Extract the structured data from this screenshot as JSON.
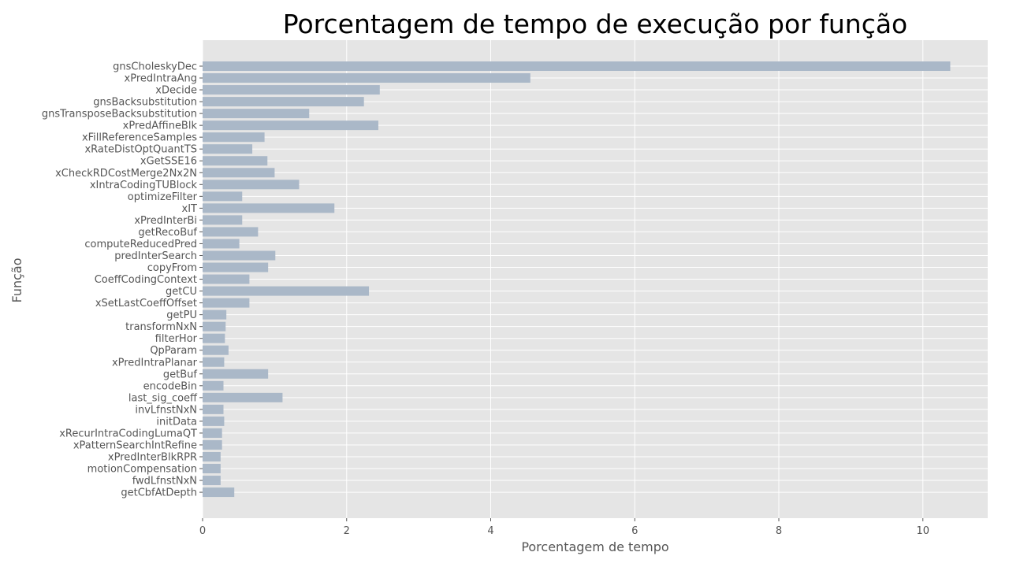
{
  "chart_data": {
    "type": "bar",
    "orientation": "horizontal",
    "title": "Porcentagem de tempo de execução por função",
    "xlabel": "Porcentagem de tempo",
    "ylabel": "Função",
    "xlim": [
      0,
      10.9
    ],
    "xticks": [
      "0",
      "2",
      "4",
      "6",
      "8",
      "10"
    ],
    "grid": true,
    "bar_color": "#aab8c8",
    "background_color": "#e5e5e5",
    "categories": [
      "gnsCholeskyDec",
      "xPredIntraAng",
      "xDecide",
      "gnsBacksubstitution",
      "gnsTransposeBacksubstitution",
      "xPredAffineBlk",
      "xFillReferenceSamples",
      "xRateDistOptQuantTS",
      "xGetSSE16",
      "xCheckRDCostMerge2Nx2N",
      "xIntraCodingTUBlock",
      "optimizeFilter",
      "xIT",
      "xPredInterBi",
      "getRecoBuf",
      "computeReducedPred",
      "predInterSearch",
      "copyFrom",
      "CoeffCodingContext",
      "getCU",
      "xSetLastCoeffOffset",
      "getPU",
      "transformNxN",
      "filterHor",
      "QpParam",
      "xPredIntraPlanar",
      "getBuf",
      "encodeBin",
      "last_sig_coeff",
      "invLfnstNxN",
      "initData",
      "xRecurIntraCodingLumaQT",
      "xPatternSearchIntRefine",
      "xPredInterBlkRPR",
      "motionCompensation",
      "fwdLfnstNxN",
      "getCbfAtDepth"
    ],
    "values": [
      10.38,
      4.55,
      2.46,
      2.24,
      1.48,
      2.44,
      0.86,
      0.69,
      0.9,
      1.0,
      1.34,
      0.55,
      1.83,
      0.55,
      0.77,
      0.51,
      1.01,
      0.91,
      0.65,
      2.31,
      0.65,
      0.33,
      0.32,
      0.31,
      0.36,
      0.3,
      0.91,
      0.29,
      1.11,
      0.29,
      0.3,
      0.27,
      0.27,
      0.25,
      0.25,
      0.25,
      0.44
    ]
  }
}
